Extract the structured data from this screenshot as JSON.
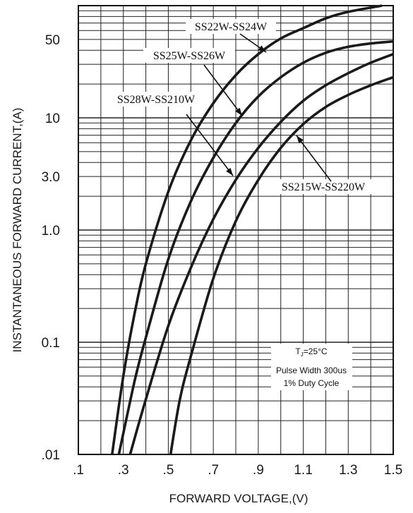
{
  "chart_data": {
    "type": "line",
    "xlabel": "FORWARD VOLTAGE,(V)",
    "ylabel": "INSTANTANEOUS FORWARD CURRENT,(A)",
    "x_scale": "linear",
    "y_scale": "log",
    "xlim": [
      0.1,
      1.5
    ],
    "ylim": [
      0.01,
      100
    ],
    "grid": true,
    "x_ticks": [
      {
        "value": 0.1,
        "label": ".1"
      },
      {
        "value": 0.3,
        "label": ".3"
      },
      {
        "value": 0.5,
        "label": ".5"
      },
      {
        "value": 0.7,
        "label": ".7"
      },
      {
        "value": 0.9,
        "label": ".9"
      },
      {
        "value": 1.1,
        "label": "1.1"
      },
      {
        "value": 1.3,
        "label": "1.3"
      },
      {
        "value": 1.5,
        "label": "1.5"
      }
    ],
    "y_ticks": [
      {
        "value": 0.01,
        "label": ".01"
      },
      {
        "value": 0.1,
        "label": "0.1"
      },
      {
        "value": 1.0,
        "label": "1.0"
      },
      {
        "value": 3.0,
        "label": "3.0"
      },
      {
        "value": 10,
        "label": "10"
      },
      {
        "value": 50,
        "label": "50"
      }
    ],
    "series": [
      {
        "name": "SS22W-SS24W",
        "x": [
          0.25,
          0.3,
          0.35,
          0.4,
          0.5,
          0.6,
          0.7,
          0.8,
          0.9,
          1.0,
          1.1,
          1.2,
          1.3,
          1.45
        ],
        "y": [
          0.01,
          0.05,
          0.18,
          0.5,
          2.2,
          6.3,
          13.5,
          24,
          37,
          51,
          63,
          77,
          88,
          100
        ]
      },
      {
        "name": "SS25W-SS26W",
        "x": [
          0.28,
          0.35,
          0.4,
          0.5,
          0.6,
          0.7,
          0.8,
          0.9,
          1.0,
          1.1,
          1.2,
          1.3,
          1.4,
          1.5
        ],
        "y": [
          0.01,
          0.045,
          0.11,
          0.55,
          1.8,
          4.4,
          9,
          15.5,
          23,
          31,
          38,
          43,
          46,
          48
        ]
      },
      {
        "name": "SS28W-SS210W",
        "x": [
          0.33,
          0.4,
          0.5,
          0.6,
          0.7,
          0.8,
          0.9,
          1.0,
          1.1,
          1.2,
          1.3,
          1.4,
          1.5
        ],
        "y": [
          0.01,
          0.031,
          0.14,
          0.46,
          1.25,
          2.8,
          5.4,
          9.2,
          14.2,
          19.5,
          25,
          31,
          37
        ]
      },
      {
        "name": "SS215W-SS220W",
        "x": [
          0.51,
          0.55,
          0.6,
          0.7,
          0.8,
          0.9,
          1.0,
          1.1,
          1.2,
          1.3,
          1.4,
          1.5
        ],
        "y": [
          0.01,
          0.03,
          0.075,
          0.37,
          1.2,
          2.8,
          5.4,
          8.8,
          12.5,
          16,
          19.5,
          23
        ]
      }
    ],
    "annotations": {
      "tj_prefix": "T",
      "tj_sub": "J",
      "tj_suffix": "=25°C",
      "line2": "Pulse Width 300us",
      "line3": "1% Duty Cycle"
    }
  }
}
